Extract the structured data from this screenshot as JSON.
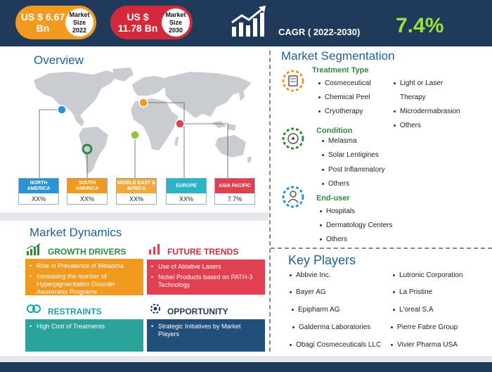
{
  "header": {
    "size_2022": {
      "value": "US $ 6.67 Bn",
      "badge": "Market Size 2022"
    },
    "size_2030": {
      "value": "US $ 11.78 Bn",
      "badge": "Market Size 2030"
    },
    "cagr_label": "CAGR ( 2022-2030)",
    "cagr_value": "7.4%"
  },
  "overview": {
    "title": "Overview",
    "regions": [
      {
        "name": "NORTH AMERICA",
        "value": "XX%",
        "color": "#2a93d5"
      },
      {
        "name": "SOUTH AMERICA",
        "value": "XX%",
        "color": "#f29a1f"
      },
      {
        "name": "MIDDLE EAST & AFRICA",
        "value": "XX%",
        "color": "#f2a93b"
      },
      {
        "name": "EUROPE",
        "value": "XX%",
        "color": "#2ab4c8"
      },
      {
        "name": "ASIA PACIFIC",
        "value": "7.7%",
        "color": "#e0404f"
      }
    ]
  },
  "segmentation": {
    "title": "Market Segmentation",
    "treatment": {
      "title": "Treatment Type",
      "items_left": [
        "Cosmeceutical",
        "Chemical Peel",
        "Cryotherapy"
      ],
      "items_right": [
        "Light or Laser",
        "Therapy",
        "Microdermabrasion",
        "Others"
      ]
    },
    "condition": {
      "title": "Condition",
      "items": [
        "Melasma",
        "Solar Lentigines",
        "Post Inflammatory",
        "Others"
      ]
    },
    "enduser": {
      "title": "End-user",
      "items": [
        "Hospitals",
        "Dermatology Centers",
        "Others"
      ]
    }
  },
  "dynamics": {
    "title": "Market Dynamics",
    "growth": {
      "title": "GROWTH DRIVERS",
      "items": [
        "Rise in Prevalence of Melasma",
        "Increasing the number of Hyperpigmentation Disorder Awareness Programs"
      ]
    },
    "trends": {
      "title": "FUTURE TRENDS",
      "items": [
        "Use of Ablative Lasers",
        "Nobel Products based on PATH-3 Technology"
      ]
    },
    "restraints": {
      "title": "RESTRAINTS",
      "items": [
        "High Cost of Treatments"
      ]
    },
    "opportunity": {
      "title": "OPPORTUNITY",
      "items": [
        "Strategic Initiatives by Market Players"
      ]
    }
  },
  "players": {
    "title": "Key Players",
    "left": [
      "Abbvie Inc.",
      "Bayer AG",
      "Epipharm AG",
      "Galderma Laboratories",
      "Obagi Cosmeceuticals LLC"
    ],
    "right": [
      "Lutronic Corporation",
      "La Pristine",
      "L'oreal S.A",
      "Pierre Fabre Group",
      "Vivier Pharma USA"
    ]
  }
}
